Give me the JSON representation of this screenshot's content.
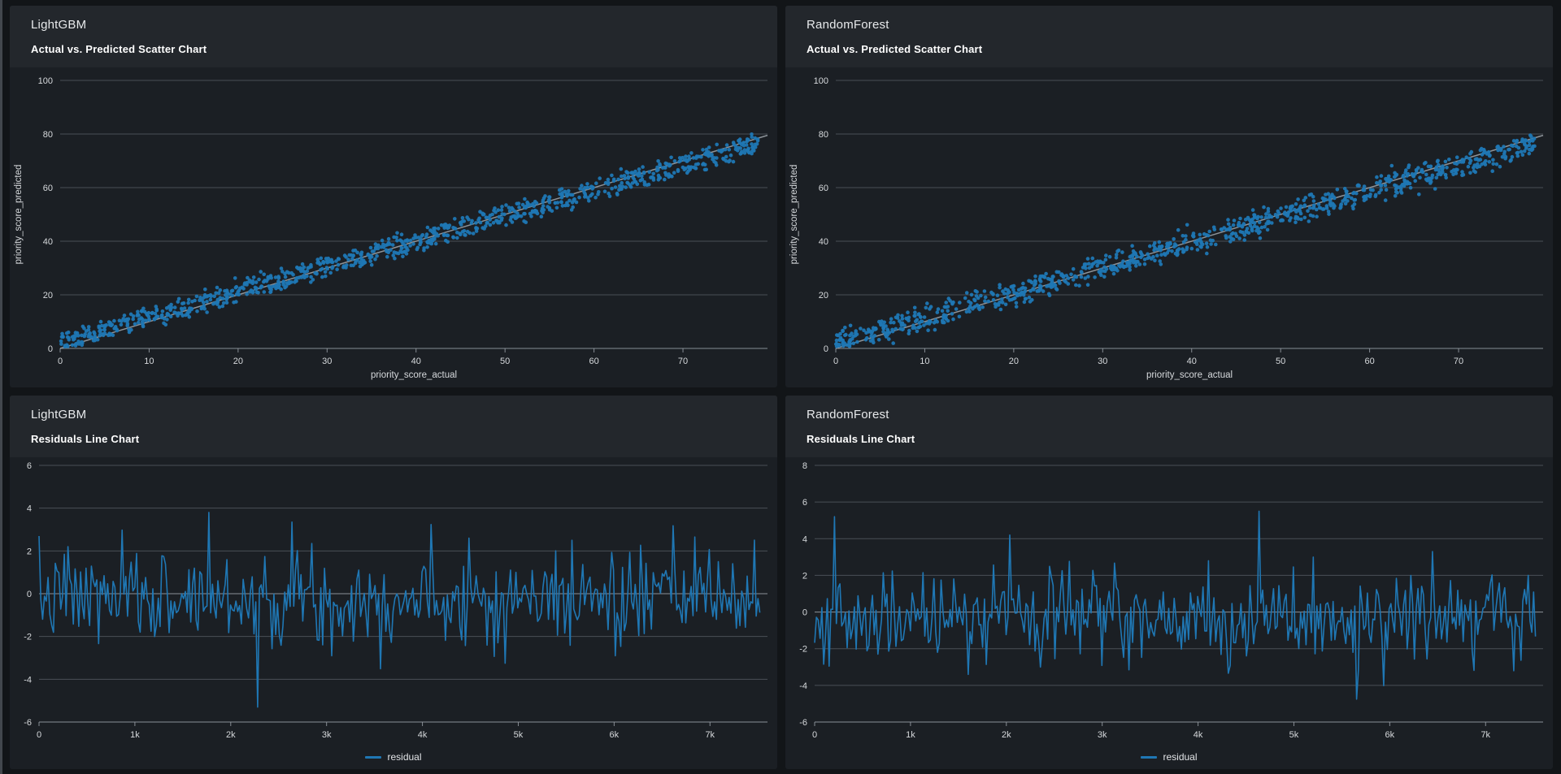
{
  "app": {
    "page_background": "#121518",
    "edge_strip_color": "#42474d",
    "panel_background": "#1b1f24",
    "panel_header_background": "#23272c"
  },
  "colors": {
    "accent_blue": "#1f77b4",
    "identity_line": "#9aa0a6",
    "grid_line": "#848b93",
    "axis_line": "#9298a0",
    "tick_text": "#d6d9dc",
    "title_text": "#e7e9eb",
    "subtitle_text": "#ffffff"
  },
  "panels": [
    {
      "id": "lightgbm-scatter",
      "title": "LightGBM",
      "subtitle": "Actual vs. Predicted Scatter Chart"
    },
    {
      "id": "randomforest-scatter",
      "title": "RandomForest",
      "subtitle": "Actual vs. Predicted Scatter Chart"
    },
    {
      "id": "lightgbm-residuals",
      "title": "LightGBM",
      "subtitle": "Residuals Line Chart",
      "legend": "residual"
    },
    {
      "id": "randomforest-residuals",
      "title": "RandomForest",
      "subtitle": "Residuals Line Chart",
      "legend": "residual"
    }
  ],
  "chart_data": [
    {
      "type": "scatter",
      "title": "LightGBM",
      "subtitle": "Actual vs. Predicted Scatter Chart",
      "xlabel": "priority_score_actual",
      "ylabel": "priority_score_predicted",
      "xlim": [
        0,
        79.5
      ],
      "ylim": [
        0,
        100
      ],
      "x_ticks": {
        "values": [
          0,
          10,
          20,
          30,
          40,
          50,
          60,
          70
        ],
        "labels": [
          "0",
          "10",
          "20",
          "30",
          "40",
          "50",
          "60",
          "70"
        ]
      },
      "y_ticks": {
        "values": [
          0,
          20,
          40,
          60,
          80,
          100
        ],
        "labels": [
          "0",
          "20",
          "40",
          "60",
          "80",
          "100"
        ]
      },
      "grid": "horizontal",
      "legend_visible": false,
      "marker_color": "#1f77b4",
      "marker_radius": 2.3,
      "ref_line": {
        "x0": 0,
        "y0": 0,
        "x1": 79.5,
        "y1": 79.5,
        "color": "#9aa0a6",
        "note": "identity line y = x"
      },
      "gen": {
        "kind": "diagonal-cloud",
        "n": 950,
        "x_max": 78.6,
        "intercept": 2.2,
        "slope": 0.945,
        "band_min": 0.6,
        "band_spread": 1.6,
        "jitter_sd": 0.5,
        "y_floor": 0.7,
        "seed": 42
      }
    },
    {
      "type": "scatter",
      "title": "RandomForest",
      "subtitle": "Actual vs. Predicted Scatter Chart",
      "xlabel": "priority_score_actual",
      "ylabel": "priority_score_predicted",
      "xlim": [
        0,
        79.5
      ],
      "ylim": [
        0,
        100
      ],
      "x_ticks": {
        "values": [
          0,
          10,
          20,
          30,
          40,
          50,
          60,
          70
        ],
        "labels": [
          "0",
          "10",
          "20",
          "30",
          "40",
          "50",
          "60",
          "70"
        ]
      },
      "y_ticks": {
        "values": [
          0,
          20,
          40,
          60,
          80,
          100
        ],
        "labels": [
          "0",
          "20",
          "40",
          "60",
          "80",
          "100"
        ]
      },
      "grid": "horizontal",
      "legend_visible": false,
      "marker_color": "#1f77b4",
      "marker_radius": 2.3,
      "ref_line": {
        "x0": 0,
        "y0": 0,
        "x1": 79.5,
        "y1": 79.5,
        "color": "#9aa0a6",
        "note": "identity line y = x"
      },
      "gen": {
        "kind": "diagonal-cloud",
        "n": 950,
        "x_max": 78.6,
        "intercept": 2.0,
        "slope": 0.945,
        "band_min": 0.5,
        "band_spread": 1.9,
        "jitter_sd": 0.6,
        "y_floor": 0.7,
        "seed": 77
      }
    },
    {
      "type": "line",
      "title": "LightGBM",
      "subtitle": "Residuals Line Chart",
      "xlabel": "",
      "ylabel": "",
      "xlim": [
        0,
        7600
      ],
      "ylim": [
        -6,
        6
      ],
      "x_ticks": {
        "values": [
          0,
          1000,
          2000,
          3000,
          4000,
          5000,
          6000,
          7000
        ],
        "labels": [
          "0",
          "1k",
          "2k",
          "3k",
          "4k",
          "5k",
          "6k",
          "7k"
        ]
      },
      "y_ticks": {
        "values": [
          -6,
          -4,
          -2,
          0,
          2,
          4,
          6
        ],
        "labels": [
          "-6",
          "-4",
          "-2",
          "0",
          "2",
          "4",
          "6"
        ]
      },
      "grid": "horizontal",
      "highlight_zero": true,
      "legend_visible": true,
      "series": [
        {
          "name": "residual",
          "color": "#1f77b4",
          "width": 1.6
        }
      ],
      "gen": {
        "kind": "noise-line",
        "n": 400,
        "x_max": 7520,
        "mean": -0.2,
        "sd": 1.05,
        "seed": 7,
        "spikes": [
          [
            1780,
            3.8
          ],
          [
            2280,
            -5.3
          ],
          [
            2640,
            3.35
          ],
          [
            300,
            2.2
          ],
          [
            3050,
            -2.9
          ],
          [
            4480,
            2.6
          ],
          [
            4870,
            -3.25
          ],
          [
            5560,
            2.5
          ],
          [
            6020,
            -2.9
          ],
          [
            6850,
            2.65
          ]
        ]
      }
    },
    {
      "type": "line",
      "title": "RandomForest",
      "subtitle": "Residuals Line Chart",
      "xlabel": "",
      "ylabel": "",
      "xlim": [
        0,
        7600
      ],
      "ylim": [
        -6,
        8
      ],
      "x_ticks": {
        "values": [
          0,
          1000,
          2000,
          3000,
          4000,
          5000,
          6000,
          7000
        ],
        "labels": [
          "0",
          "1k",
          "2k",
          "3k",
          "4k",
          "5k",
          "6k",
          "7k"
        ]
      },
      "y_ticks": {
        "values": [
          -6,
          -4,
          -2,
          0,
          2,
          4,
          6,
          8
        ],
        "labels": [
          "-6",
          "-4",
          "-2",
          "0",
          "2",
          "4",
          "6",
          "8"
        ]
      },
      "grid": "horizontal",
      "highlight_zero": true,
      "legend_visible": true,
      "series": [
        {
          "name": "residual",
          "color": "#1f77b4",
          "width": 1.6
        }
      ],
      "gen": {
        "kind": "noise-line",
        "n": 400,
        "x_max": 7520,
        "mean": -0.35,
        "sd": 1.2,
        "seed": 19,
        "spikes": [
          [
            210,
            5.2
          ],
          [
            2030,
            4.2
          ],
          [
            4640,
            5.5
          ],
          [
            1600,
            -3.4
          ],
          [
            2350,
            -3.0
          ],
          [
            4100,
            2.8
          ],
          [
            5200,
            3.0
          ],
          [
            5660,
            -4.75
          ],
          [
            6450,
            3.3
          ],
          [
            7300,
            -3.2
          ]
        ]
      }
    }
  ]
}
